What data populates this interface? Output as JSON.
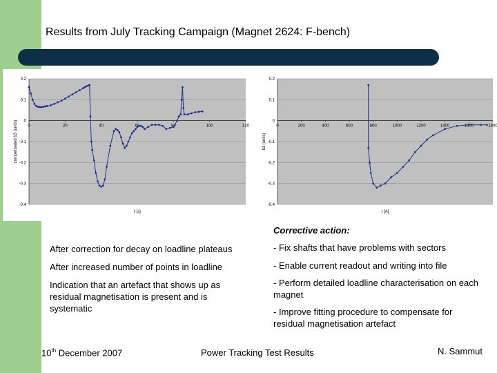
{
  "slide": {
    "title": "Results from July Tracking Campaign (Magnet 2624: F-bench)",
    "corrective_heading": "Corrective action:",
    "left_notes": [
      "After correction for decay on loadline plateaus",
      "After increased number of points in loadline",
      "Indication that an artefact that shows up as residual magnetisation is present and is systematic"
    ],
    "right_notes": [
      "- Fix shafts that have problems with sectors",
      "- Enable current readout and writing into file",
      "- Perform detailed loadline characterisation on each magnet",
      "- Improve fitting procedure to compensate for residual magnetisation artefact"
    ],
    "footer": {
      "date_day": "10",
      "date_suffix": "th",
      "date_rest": " December 2007",
      "center": "Power Tracking Test Results",
      "author": "N. Sammut"
    }
  },
  "colors": {
    "band": "#9fcf8f",
    "bar": "#0d2f45",
    "plot_bg": "#c0c0c0",
    "series": "#1f2f8f"
  },
  "chart_data": [
    {
      "type": "line",
      "title": "",
      "xlabel": "t [s]",
      "ylabel": "compensated b3 (units)",
      "xlim": [
        0,
        120
      ],
      "ylim": [
        -0.4,
        0.2
      ],
      "xticks": [
        0,
        20,
        40,
        60,
        80,
        100,
        120
      ],
      "xtick_labels": [
        "0",
        "20",
        "40",
        "60",
        "80",
        "100",
        "120"
      ],
      "yticks": [
        0.2,
        0.1,
        0,
        -0.1,
        -0.2,
        -0.3,
        -0.4
      ],
      "ytick_labels": [
        "0.2",
        "0.1",
        "0",
        "-0.1",
        "-0.2",
        "-0.3",
        "-0.4"
      ],
      "series": [
        {
          "name": "",
          "x": [
            0,
            1,
            2,
            3,
            4,
            5,
            6,
            7,
            8,
            9,
            10,
            12,
            14,
            16,
            18,
            20,
            22,
            24,
            26,
            28,
            30,
            31,
            32,
            33,
            33.5,
            34,
            34.5,
            35,
            36,
            37,
            38,
            39,
            40,
            41,
            42,
            43,
            45,
            47,
            48,
            49,
            50,
            51,
            52,
            53,
            54,
            55,
            56,
            57,
            58,
            59,
            60,
            61,
            62,
            63,
            64,
            66,
            68,
            70,
            72,
            74,
            76,
            78,
            80,
            82,
            83,
            84,
            84.5,
            85,
            85.5,
            86,
            88,
            90,
            92,
            94,
            96
          ],
          "y": [
            0.16,
            0.13,
            0.1,
            0.08,
            0.07,
            0.066,
            0.065,
            0.065,
            0.066,
            0.068,
            0.07,
            0.073,
            0.08,
            0.088,
            0.095,
            0.105,
            0.115,
            0.125,
            0.135,
            0.145,
            0.155,
            0.16,
            0.165,
            0.168,
            0.17,
            0.02,
            -0.1,
            -0.14,
            -0.19,
            -0.25,
            -0.29,
            -0.31,
            -0.315,
            -0.31,
            -0.28,
            -0.22,
            -0.12,
            -0.05,
            -0.04,
            -0.045,
            -0.055,
            -0.08,
            -0.11,
            -0.13,
            -0.12,
            -0.1,
            -0.08,
            -0.06,
            -0.05,
            -0.04,
            -0.03,
            -0.025,
            -0.025,
            -0.03,
            -0.04,
            -0.03,
            -0.02,
            -0.02,
            -0.02,
            -0.025,
            -0.04,
            -0.035,
            -0.03,
            0.0,
            0.02,
            0.03,
            0.1,
            0.16,
            0.06,
            0.03,
            0.03,
            0.035,
            0.04,
            0.042,
            0.044
          ]
        }
      ]
    },
    {
      "type": "line",
      "title": "",
      "xlabel": "I [A]",
      "ylabel": "b3 (units)",
      "xlim": [
        0,
        1800
      ],
      "ylim": [
        -0.4,
        0.2
      ],
      "xticks": [
        0,
        200,
        400,
        600,
        800,
        1000,
        1200,
        1400,
        1600,
        1800
      ],
      "xtick_labels": [
        "0",
        "200",
        "400",
        "600",
        "800",
        "1000",
        "1200",
        "1400",
        "1600",
        "1800"
      ],
      "yticks": [
        0.2,
        0.1,
        0,
        -0.1,
        -0.2,
        -0.3,
        -0.4
      ],
      "ytick_labels": [
        "0.2",
        "0.1",
        "0",
        "-0.1",
        "-0.2",
        "-0.3",
        "-0.4"
      ],
      "series": [
        {
          "name": "",
          "x": [
            760,
            760,
            770,
            780,
            800,
            830,
            860,
            900,
            950,
            1000,
            1050,
            1100,
            1150,
            1200,
            1250,
            1300,
            1400,
            1500,
            1600,
            1700,
            1750
          ],
          "y": [
            0.17,
            -0.13,
            -0.2,
            -0.25,
            -0.3,
            -0.32,
            -0.31,
            -0.3,
            -0.27,
            -0.25,
            -0.22,
            -0.19,
            -0.15,
            -0.12,
            -0.09,
            -0.07,
            -0.04,
            -0.025,
            -0.02,
            -0.02,
            -0.02
          ]
        }
      ]
    }
  ]
}
